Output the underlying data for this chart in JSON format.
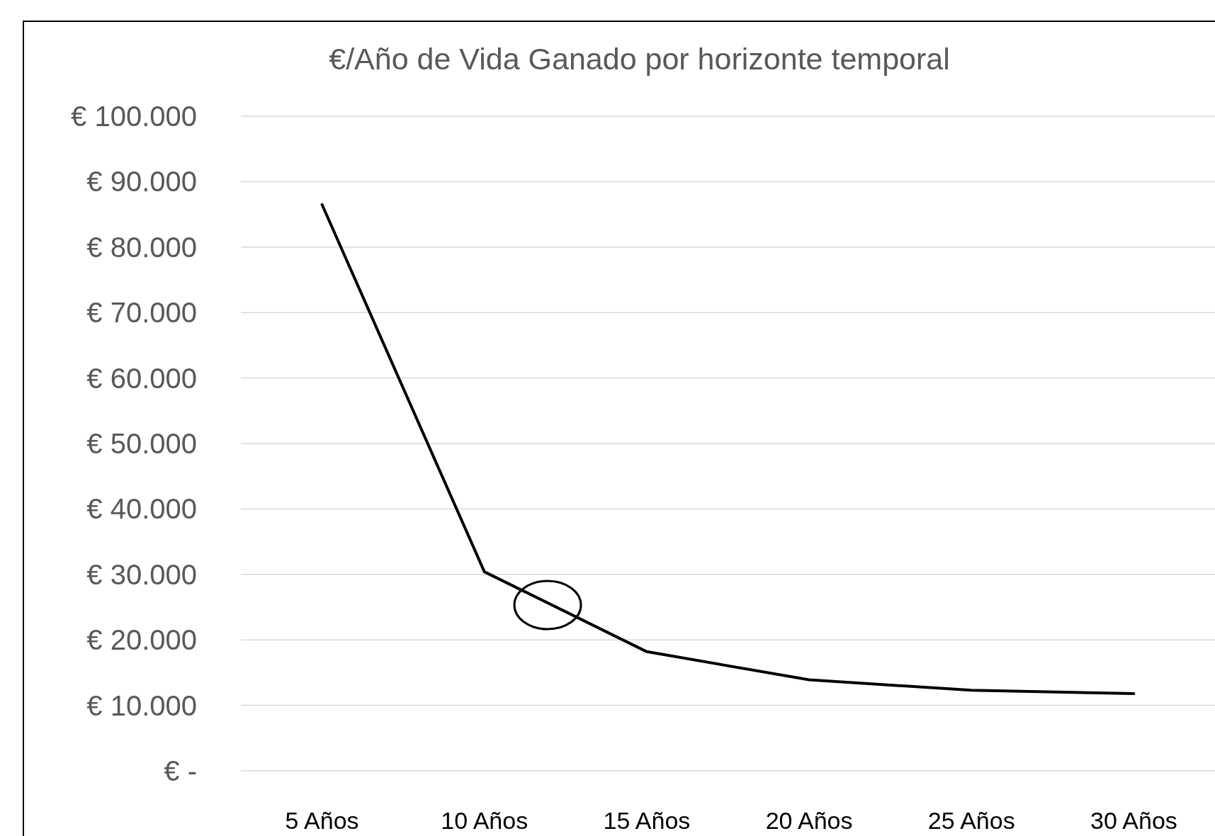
{
  "chart_data": {
    "type": "line",
    "title": "€/Año de Vida Ganado por horizonte temporal",
    "categories": [
      "5 Años",
      "10 Años",
      "15 Años",
      "20 Años",
      "25 Años",
      "30 Años"
    ],
    "series": [
      {
        "color": "#000000",
        "values": [
          86500,
          30400,
          18200,
          13900,
          12300,
          11800
        ]
      }
    ],
    "ylim": [
      0,
      100000
    ],
    "yticks": [
      {
        "value": 0,
        "label": "€ -"
      },
      {
        "value": 10000,
        "label": "€ 10.000"
      },
      {
        "value": 20000,
        "label": "€ 20.000"
      },
      {
        "value": 30000,
        "label": "€ 30.000"
      },
      {
        "value": 40000,
        "label": "€ 40.000"
      },
      {
        "value": 50000,
        "label": "€ 50.000"
      },
      {
        "value": 60000,
        "label": "€ 60.000"
      },
      {
        "value": 70000,
        "label": "€ 70.000"
      },
      {
        "value": 80000,
        "label": "€ 80.000"
      },
      {
        "value": 90000,
        "label": "€ 90.000"
      },
      {
        "value": 100000,
        "label": "€ 100.000"
      }
    ],
    "grid": "y",
    "marker": "none",
    "line_style": "solid"
  }
}
